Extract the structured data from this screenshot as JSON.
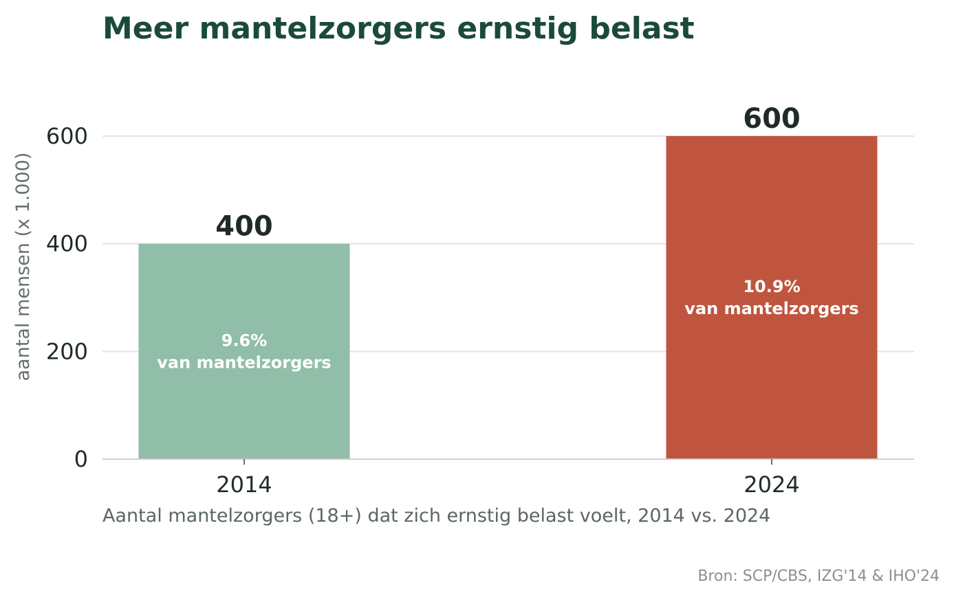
{
  "chart_data": {
    "type": "bar",
    "title": "Meer mantelzorgers ernstig belast",
    "subtitle": "Aantal mantelzorgers (18+) dat zich ernstig belast voelt, 2014 vs. 2024",
    "source": "Bron: SCP/CBS, IZG'14 & IHO'24",
    "ylabel": "aantal mensen (x 1.000)",
    "xlabel": "",
    "ylim": [
      0,
      600
    ],
    "yticks": [
      0,
      200,
      400,
      600
    ],
    "grid": true,
    "categories": [
      "2014",
      "2024"
    ],
    "values": [
      400,
      600
    ],
    "value_labels": [
      "400",
      "600"
    ],
    "inner_labels": [
      [
        "9.6%",
        "van mantelzorgers"
      ],
      [
        "10.9%",
        "van mantelzorgers"
      ]
    ],
    "colors": [
      "#90bea8",
      "#c0553f"
    ]
  }
}
